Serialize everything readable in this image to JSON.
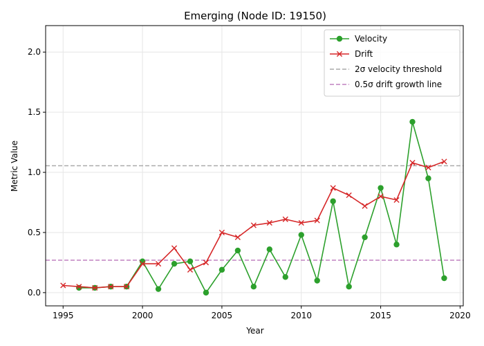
{
  "chart_data": {
    "type": "line",
    "title": "Emerging (Node ID: 19150)",
    "xlabel": "Year",
    "ylabel": "Metric Value",
    "xlim": [
      1993.9,
      2020.2
    ],
    "ylim": [
      -0.11,
      2.22
    ],
    "x_ticks": [
      1995,
      2000,
      2005,
      2010,
      2015,
      2020
    ],
    "y_ticks": [
      0.0,
      0.5,
      1.0,
      1.5,
      2.0
    ],
    "x_tick_labels": [
      "1995",
      "2000",
      "2005",
      "2010",
      "2015",
      "2020"
    ],
    "y_tick_labels": [
      "0.0",
      "0.5",
      "1.0",
      "1.5",
      "2.0"
    ],
    "grid": true,
    "legend_position": "top-right",
    "series": [
      {
        "name": "Velocity",
        "color": "#2ca02c",
        "marker": "circle",
        "x": [
          1996,
          1997,
          1998,
          1999,
          2000,
          2001,
          2002,
          2003,
          2004,
          2005,
          2006,
          2007,
          2008,
          2009,
          2010,
          2011,
          2012,
          2013,
          2014,
          2015,
          2016,
          2017,
          2018,
          2019
        ],
        "values": [
          0.04,
          0.04,
          0.05,
          0.05,
          0.26,
          0.03,
          0.24,
          0.26,
          0.0,
          0.19,
          0.35,
          0.05,
          0.36,
          0.13,
          0.48,
          0.1,
          0.76,
          0.05,
          0.46,
          0.87,
          0.4,
          1.42,
          0.95,
          0.12
        ]
      },
      {
        "name": "Drift",
        "color": "#d62728",
        "marker": "x",
        "x": [
          1995,
          1996,
          1997,
          1998,
          1999,
          2000,
          2001,
          2002,
          2003,
          2004,
          2005,
          2006,
          2007,
          2008,
          2009,
          2010,
          2011,
          2012,
          2013,
          2014,
          2015,
          2016,
          2017,
          2018,
          2019
        ],
        "values": [
          0.06,
          0.05,
          0.04,
          0.05,
          0.05,
          0.24,
          0.24,
          0.37,
          0.19,
          0.25,
          0.5,
          0.46,
          0.56,
          0.58,
          0.61,
          0.58,
          0.6,
          0.87,
          0.81,
          0.72,
          0.8,
          0.77,
          1.08,
          1.04,
          1.09
        ]
      }
    ],
    "reference_lines": [
      {
        "name": "2σ velocity threshold",
        "y": 1.055,
        "color": "#aaaaaa",
        "style": "dashed"
      },
      {
        "name": "0.5σ drift growth line",
        "y": 0.27,
        "color": "#c080c0",
        "style": "dashed"
      }
    ]
  }
}
